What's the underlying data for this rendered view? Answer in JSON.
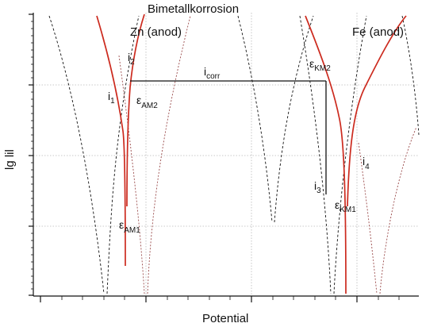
{
  "title": "Bimetallkorrosion",
  "xlabel": "Potential",
  "ylabel": "lg lil",
  "labels": {
    "zn": "Zn (anod)",
    "fe": "Fe (anod)",
    "i1": {
      "main": "i",
      "sub": "1"
    },
    "i2": {
      "main": "i",
      "sub": "2"
    },
    "i3": {
      "main": "i",
      "sub": "3"
    },
    "i4": {
      "main": "i",
      "sub": "4"
    },
    "icorr": {
      "main": "i",
      "sub": "corr"
    },
    "eam1": {
      "main": "ε",
      "sub": "AM1"
    },
    "eam2": {
      "main": "ε",
      "sub": "AM2"
    },
    "ekm1": {
      "main": "ε",
      "sub": "KM1"
    },
    "ekm2": {
      "main": "ε",
      "sub": "KM2"
    }
  },
  "colors": {
    "red": "#cc2a1e",
    "black": "#111111",
    "grid": "#b8b8b8",
    "dashed_red": "#9a4a4a"
  }
}
